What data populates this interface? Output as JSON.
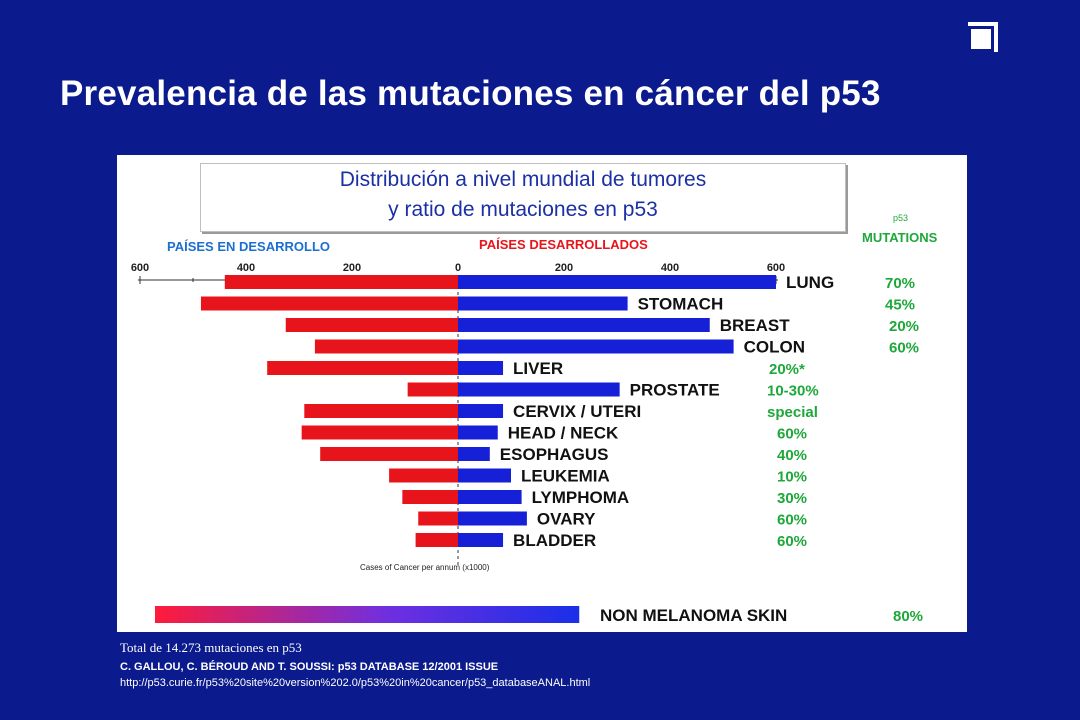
{
  "slide": {
    "title": "Prevalencia de las mutaciones en cáncer del p53",
    "subtitle_line1": "Distribución a nivel mundial de tumores",
    "subtitle_line2": "y ratio de mutaciones en p53",
    "footer_total": "Total de 14.273 mutaciones en p53",
    "footer_citation": "C. GALLOU, C. BÉROUD AND T. SOUSSI: p53 DATABASE 12/2001 ISSUE",
    "footer_url": "http://p53.curie.fr/p53%20site%20version%202.0/p53%20in%20cancer/p53_databaseANAL.html",
    "icon": "window-restore-icon"
  },
  "chart_data": {
    "type": "bar",
    "orientation": "horizontal-diverging",
    "left_label": "PAÍSES EN DESARROLLO",
    "right_label": "PAÍSES DESARROLLADOS",
    "mutations_header_line1": "p53",
    "mutations_header_line2": "MUTATIONS",
    "xlabel": "Cases of Cancer per annum (x1000)",
    "xlim": [
      -600,
      600
    ],
    "ticks": [
      600,
      400,
      200,
      0,
      200,
      400,
      600
    ],
    "colors": {
      "developing": "#e8141c",
      "developed": "#1620d6",
      "mutation_text": "#1ea83a",
      "left_label": "#1b6fd0",
      "right_label": "#e8141c"
    },
    "categories": [
      "LUNG",
      "STOMACH",
      "BREAST",
      "COLON",
      "LIVER",
      "PROSTATE",
      "CERVIX / UTERI",
      "HEAD / NECK",
      "ESOPHAGUS",
      "LEUKEMIA",
      "LYMPHOMA",
      "OVARY",
      "BLADDER"
    ],
    "series": [
      {
        "name": "PAÍSES EN DESARROLLO",
        "values": [
          440,
          485,
          325,
          270,
          360,
          95,
          290,
          295,
          260,
          130,
          105,
          75,
          80
        ]
      },
      {
        "name": "PAÍSES DESARROLLADOS",
        "values": [
          600,
          320,
          475,
          520,
          85,
          305,
          85,
          75,
          60,
          100,
          120,
          130,
          85
        ]
      }
    ],
    "mutations": [
      "70%",
      "45%",
      "20%",
      "60%",
      "20%*",
      "10-30%",
      "special",
      "60%",
      "40%",
      "10%",
      "30%",
      "60%",
      "60%"
    ],
    "extra": {
      "label": "NON MELANOMA SKIN",
      "mutation": "80%",
      "value_from": -570,
      "value_to": 225,
      "gradient": [
        "#ff1b3a",
        "#6f2fe0",
        "#1a2fe8"
      ]
    }
  }
}
